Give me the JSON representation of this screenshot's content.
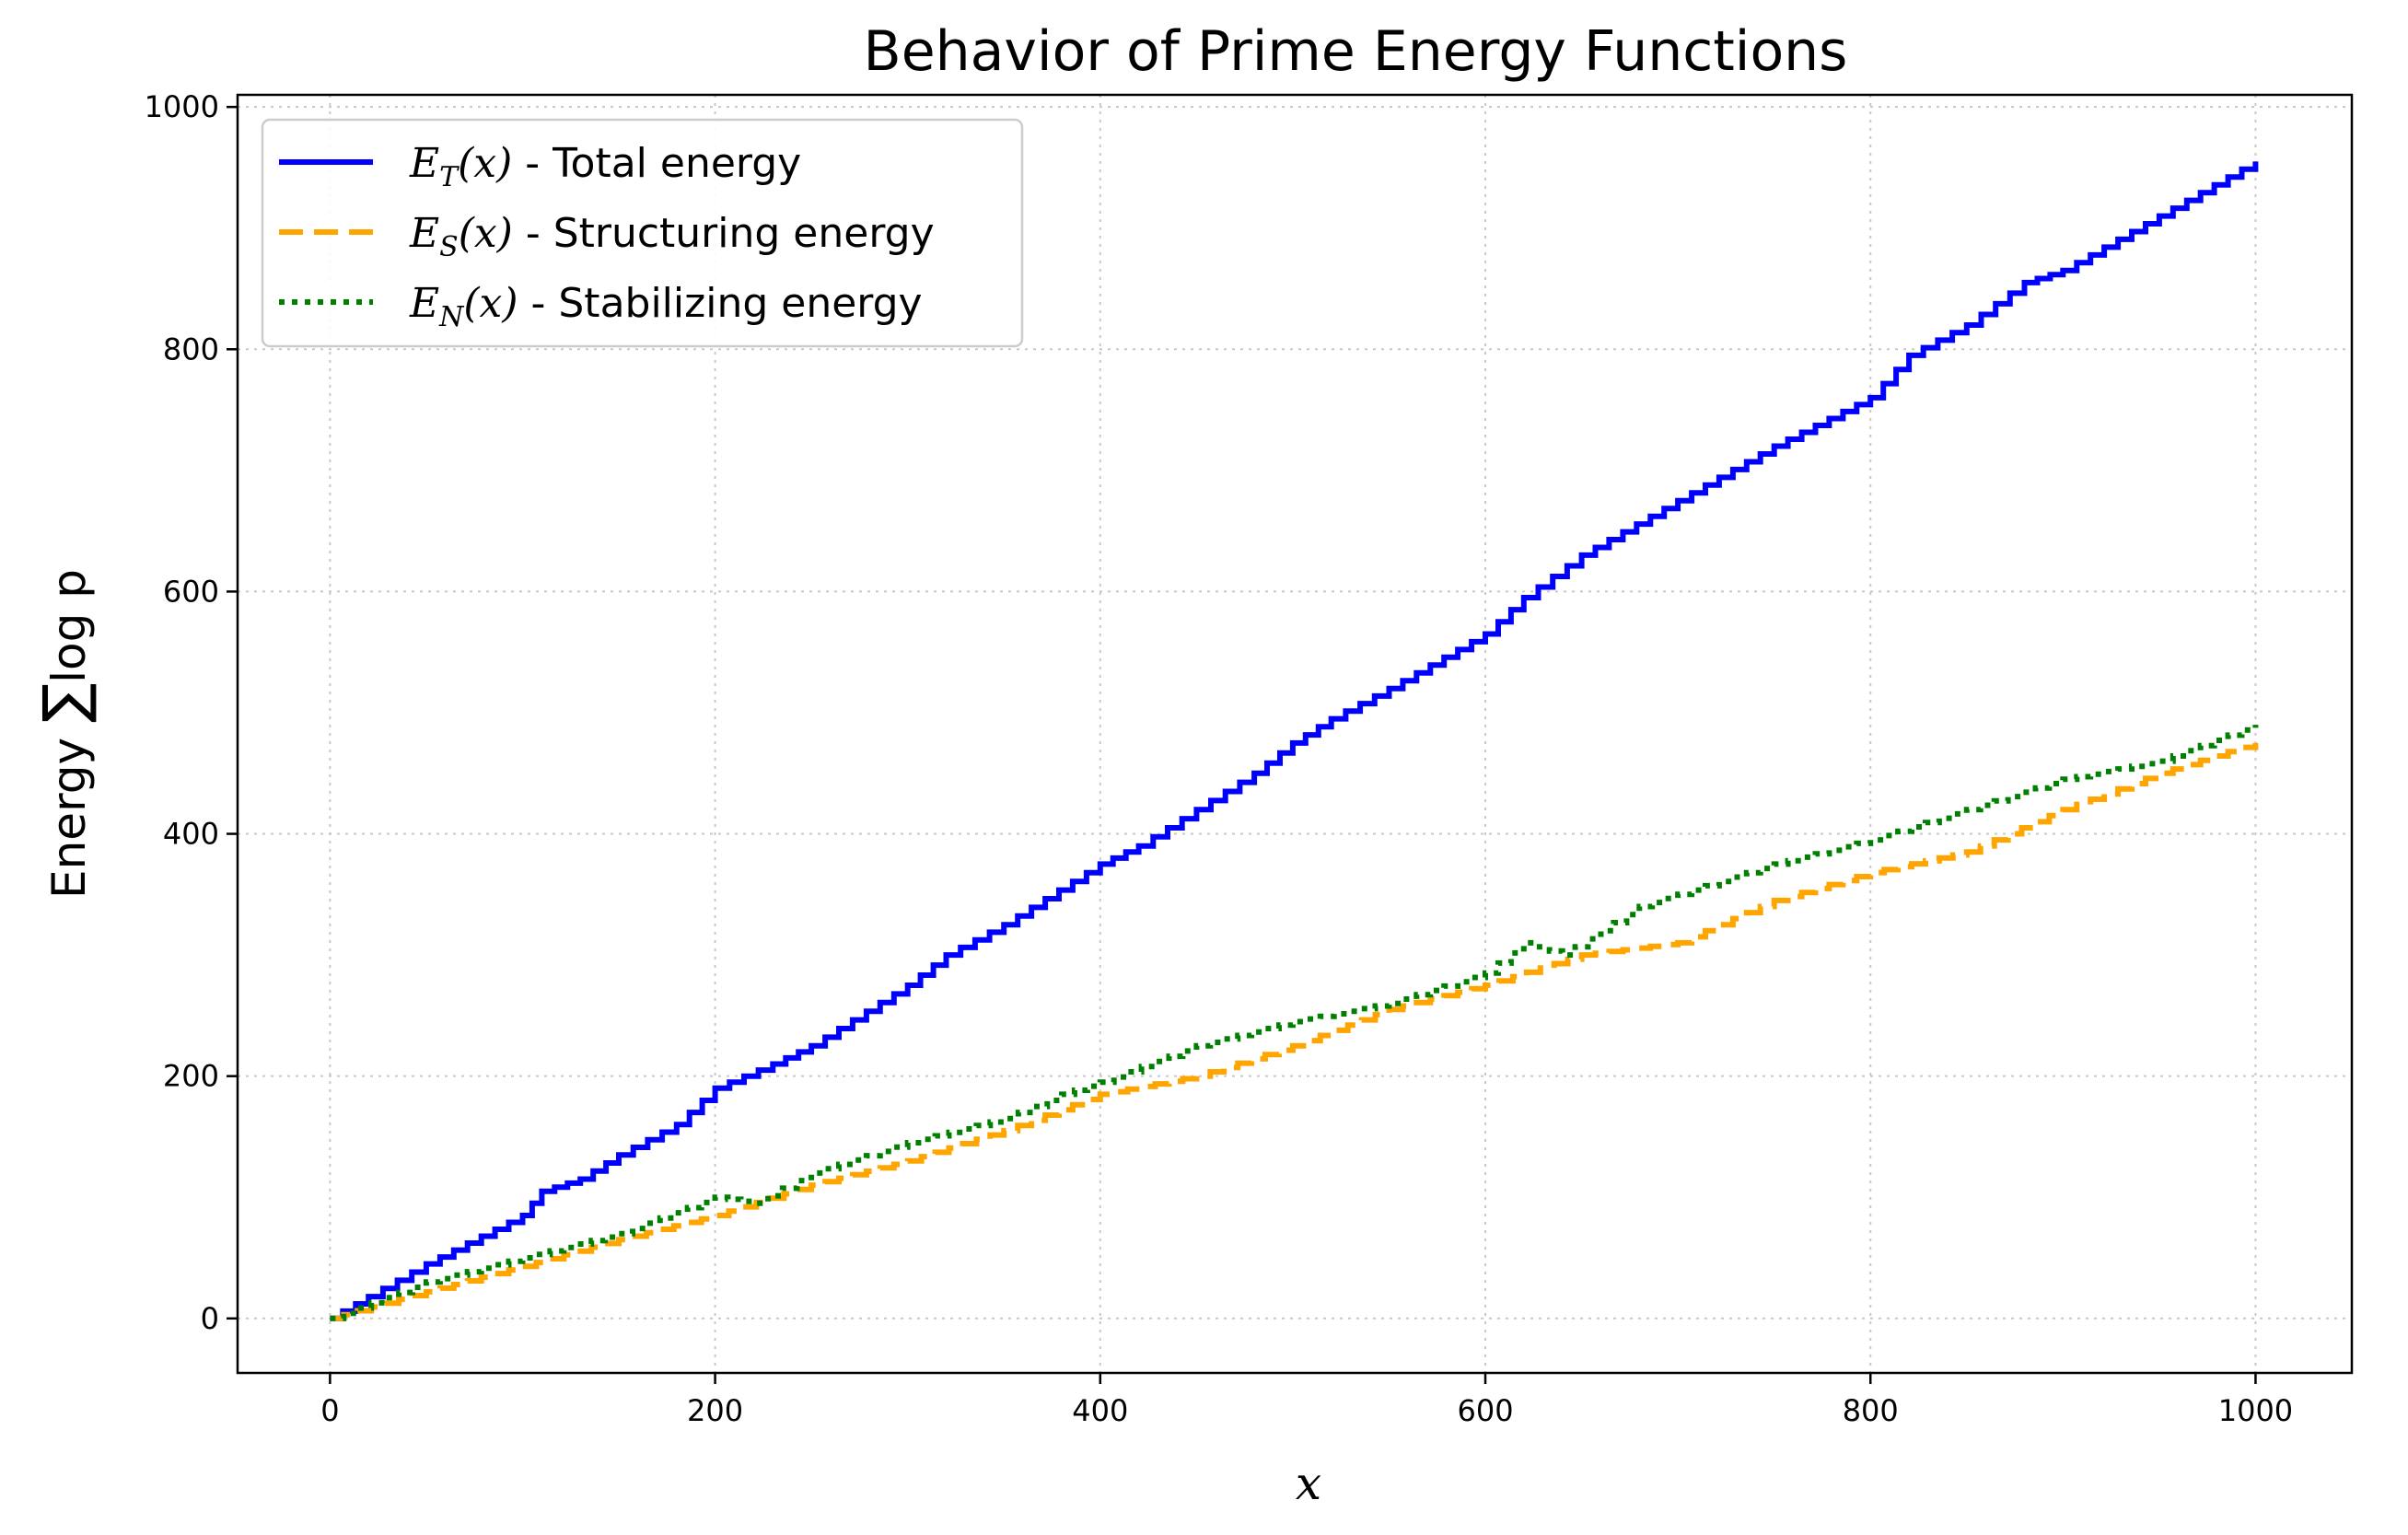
{
  "chart_data": {
    "type": "line",
    "title": "Behavior of Prime Energy Functions",
    "xlabel": "x",
    "ylabel": {
      "prefix": "Energy ",
      "sum_symbol": "∑",
      "expr": "log p"
    },
    "xlim": [
      -48,
      1050
    ],
    "ylim": [
      -45,
      1010
    ],
    "xticks": [
      0,
      200,
      400,
      600,
      800,
      1000
    ],
    "yticks": [
      0,
      200,
      400,
      600,
      800,
      1000
    ],
    "grid": true,
    "legend_position": "top-left",
    "series": [
      {
        "name": "E_T(x) - Total energy",
        "legend": {
          "symbol": "E",
          "sub": "T",
          "arg": "(x)",
          "text": " - Total energy"
        },
        "color": "#0000ff",
        "style": "solid",
        "x": [
          0,
          20,
          50,
          100,
          110,
          130,
          150,
          180,
          200,
          230,
          250,
          300,
          320,
          350,
          400,
          420,
          450,
          480,
          500,
          520,
          550,
          600,
          620,
          650,
          700,
          750,
          800,
          820,
          850,
          880,
          900,
          950,
          1000
        ],
        "y": [
          0,
          18,
          45,
          85,
          105,
          115,
          135,
          160,
          190,
          210,
          225,
          275,
          300,
          325,
          375,
          390,
          420,
          450,
          475,
          495,
          520,
          565,
          595,
          630,
          675,
          720,
          760,
          795,
          820,
          855,
          865,
          910,
          955
        ]
      },
      {
        "name": "E_S(x) - Structuring energy",
        "legend": {
          "symbol": "E",
          "sub": "S",
          "arg": "(x)",
          "text": " - Structuring energy"
        },
        "color": "#ffa500",
        "style": "dashed",
        "x": [
          0,
          50,
          100,
          150,
          200,
          250,
          300,
          350,
          400,
          450,
          500,
          550,
          600,
          650,
          700,
          750,
          800,
          850,
          900,
          950,
          1000
        ],
        "y": [
          0,
          22,
          43,
          65,
          85,
          110,
          130,
          155,
          185,
          200,
          225,
          255,
          275,
          300,
          310,
          345,
          368,
          385,
          420,
          450,
          475
        ]
      },
      {
        "name": "E_N(x) - Stabilizing energy",
        "legend": {
          "symbol": "E",
          "sub": "N",
          "arg": "(x)",
          "text": " - Stabilizing energy"
        },
        "color": "#008000",
        "style": "dotted",
        "x": [
          0,
          50,
          100,
          150,
          200,
          220,
          250,
          300,
          350,
          380,
          400,
          450,
          500,
          550,
          600,
          620,
          640,
          680,
          700,
          750,
          800,
          850,
          900,
          950,
          1000
        ],
        "y": [
          0,
          30,
          50,
          70,
          100,
          95,
          120,
          145,
          165,
          185,
          195,
          225,
          245,
          260,
          285,
          310,
          300,
          340,
          350,
          375,
          395,
          420,
          445,
          460,
          490
        ]
      }
    ]
  }
}
